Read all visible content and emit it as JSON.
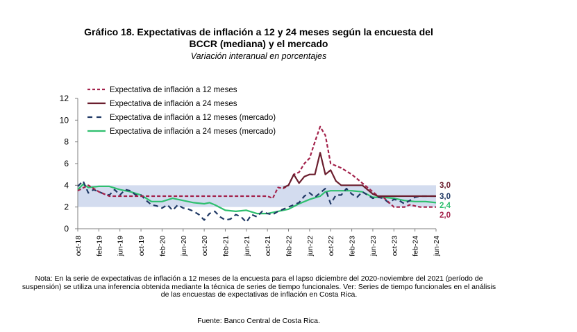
{
  "title_line1": "Gráfico 18. Expectativas de inflación a 12 y 24 meses según la encuesta del",
  "title_line2": "BCCR (mediana) y el mercado",
  "subtitle": "Variación interanual en porcentajes",
  "note": "Nota: En la serie de expectativas de inflación a 12 meses de la encuesta para el lapso diciembre del 2020-noviembre del 2021 (período de suspensión) se utiliza una inferencia obtenida mediante la técnica de series de tiempo funcionales. Ver: Series de tiempo funcionales en el análisis de las encuestas de expectativas de inflación en Costa Rica.",
  "source": "Fuente: Banco Central de Costa Rica.",
  "colors": {
    "s12": "#A3224B",
    "s24": "#6B1E2E",
    "m12": "#1F3864",
    "m24": "#2EBF6E",
    "band": "#D3DCEF"
  },
  "chart_data": {
    "type": "line",
    "title": "Expectativas de inflación a 12 y 24 meses según la encuesta del BCCR (mediana) y el mercado",
    "ylabel": "Variación interanual en porcentajes",
    "ylim": [
      0,
      12
    ],
    "yticks": [
      0,
      2,
      4,
      6,
      8,
      10,
      12
    ],
    "x_start": "oct-18",
    "x_end": "jun-24",
    "xticks": [
      {
        "label": "oct-18",
        "i": 0
      },
      {
        "label": "feb-19",
        "i": 4
      },
      {
        "label": "jun-19",
        "i": 8
      },
      {
        "label": "oct-19",
        "i": 12
      },
      {
        "label": "feb-20",
        "i": 16
      },
      {
        "label": "jun-20",
        "i": 20
      },
      {
        "label": "oct-20",
        "i": 24
      },
      {
        "label": "feb-21",
        "i": 28
      },
      {
        "label": "jun-21",
        "i": 32
      },
      {
        "label": "oct-21",
        "i": 36
      },
      {
        "label": "feb-22",
        "i": 40
      },
      {
        "label": "jun-22",
        "i": 44
      },
      {
        "label": "oct-22",
        "i": 48
      },
      {
        "label": "feb-23",
        "i": 52
      },
      {
        "label": "jun-23",
        "i": 56
      },
      {
        "label": "oct-23",
        "i": 60
      },
      {
        "label": "feb-24",
        "i": 64
      },
      {
        "label": "jun-24",
        "i": 68
      }
    ],
    "target_band": [
      2,
      4
    ],
    "series": [
      {
        "key": "s12",
        "name": "Expectativa de inflación a 12 meses",
        "style": "dashed",
        "points": [
          [
            0,
            3.5
          ],
          [
            2,
            4
          ],
          [
            4,
            3.4
          ],
          [
            6,
            3
          ],
          [
            9,
            3
          ],
          [
            12,
            3
          ],
          [
            15,
            3
          ],
          [
            18,
            3
          ],
          [
            21,
            3
          ],
          [
            23,
            3
          ],
          [
            24,
            3
          ],
          [
            26,
            3
          ],
          [
            28,
            3
          ],
          [
            30,
            3
          ],
          [
            32,
            3
          ],
          [
            34,
            3
          ],
          [
            36,
            3
          ],
          [
            37,
            2.8
          ],
          [
            38,
            3.8
          ],
          [
            39,
            3.7
          ],
          [
            40,
            4
          ],
          [
            41,
            5
          ],
          [
            42,
            5.2
          ],
          [
            43,
            6
          ],
          [
            44,
            6.5
          ],
          [
            45,
            8
          ],
          [
            46,
            9.4
          ],
          [
            47,
            8.6
          ],
          [
            48,
            6
          ],
          [
            50,
            5.6
          ],
          [
            52,
            5
          ],
          [
            53,
            4.6
          ],
          [
            55,
            3.8
          ],
          [
            56,
            3.4
          ],
          [
            57,
            3
          ],
          [
            58,
            2.9
          ],
          [
            60,
            2
          ],
          [
            62,
            2
          ],
          [
            63,
            2.2
          ],
          [
            65,
            2
          ],
          [
            68,
            2
          ]
        ],
        "final_label": "2,0"
      },
      {
        "key": "s24",
        "name": "Expectativa de inflación a 24 meses",
        "style": "solid",
        "points": [
          [
            39,
            3.8
          ],
          [
            40,
            4
          ],
          [
            41,
            5
          ],
          [
            42,
            4.2
          ],
          [
            43,
            4.8
          ],
          [
            44,
            5
          ],
          [
            45,
            5
          ],
          [
            46,
            7
          ],
          [
            47,
            5
          ],
          [
            48,
            5.4
          ],
          [
            49,
            4.4
          ],
          [
            50,
            4
          ],
          [
            52,
            4
          ],
          [
            54,
            4
          ],
          [
            55,
            3.6
          ],
          [
            56,
            3.2
          ],
          [
            57,
            3
          ],
          [
            60,
            3
          ],
          [
            65,
            3
          ],
          [
            68,
            3
          ]
        ],
        "final_label": "3,0"
      },
      {
        "key": "m12",
        "name": "Expectativa de inflación a 12 meses (mercado)",
        "style": "dashed",
        "points": [
          [
            0,
            3.9
          ],
          [
            1,
            4.4
          ],
          [
            2,
            3.3
          ],
          [
            3,
            3.6
          ],
          [
            4,
            3.4
          ],
          [
            5,
            3.2
          ],
          [
            6,
            3.1
          ],
          [
            7,
            3.6
          ],
          [
            8,
            3.1
          ],
          [
            9,
            3.6
          ],
          [
            10,
            3.5
          ],
          [
            11,
            3.1
          ],
          [
            12,
            3.1
          ],
          [
            13,
            2.6
          ],
          [
            14,
            2.2
          ],
          [
            15,
            2.1
          ],
          [
            16,
            1.9
          ],
          [
            17,
            2.2
          ],
          [
            18,
            1.7
          ],
          [
            19,
            2.2
          ],
          [
            20,
            1.9
          ],
          [
            21,
            1.8
          ],
          [
            22,
            1.6
          ],
          [
            23,
            1.3
          ],
          [
            24,
            0.8
          ],
          [
            25,
            1.4
          ],
          [
            26,
            1.6
          ],
          [
            27,
            1.1
          ],
          [
            28,
            0.8
          ],
          [
            29,
            0.9
          ],
          [
            30,
            1.3
          ],
          [
            31,
            1.1
          ],
          [
            32,
            0.6
          ],
          [
            33,
            1.3
          ],
          [
            34,
            1.1
          ],
          [
            35,
            1.6
          ],
          [
            36,
            1.4
          ],
          [
            37,
            1.3
          ],
          [
            38,
            1.6
          ],
          [
            39,
            1.8
          ],
          [
            40,
            2
          ],
          [
            41,
            2.2
          ],
          [
            42,
            2.4
          ],
          [
            43,
            3
          ],
          [
            44,
            3.3
          ],
          [
            45,
            2.9
          ],
          [
            46,
            3.3
          ],
          [
            47,
            3.7
          ],
          [
            48,
            2.3
          ],
          [
            49,
            3.1
          ],
          [
            50,
            3.1
          ],
          [
            51,
            3.7
          ],
          [
            52,
            3.2
          ],
          [
            53,
            2.9
          ],
          [
            54,
            3.4
          ],
          [
            55,
            3.1
          ],
          [
            56,
            2.8
          ],
          [
            57,
            2.9
          ],
          [
            58,
            2.8
          ],
          [
            59,
            2.4
          ],
          [
            60,
            2.7
          ],
          [
            61,
            2.6
          ],
          [
            62,
            2.3
          ],
          [
            63,
            2.6
          ],
          [
            64,
            2.9
          ],
          [
            65,
            3
          ],
          [
            66,
            3
          ],
          [
            67,
            3
          ],
          [
            68,
            3
          ]
        ],
        "final_label": "3,0"
      },
      {
        "key": "m24",
        "name": "Expectativa de inflación a 24 meses (mercado)",
        "style": "solid",
        "points": [
          [
            0,
            3.6
          ],
          [
            1,
            4.1
          ],
          [
            2,
            3.8
          ],
          [
            4,
            3.9
          ],
          [
            6,
            3.9
          ],
          [
            8,
            3.6
          ],
          [
            10,
            3.4
          ],
          [
            12,
            3.1
          ],
          [
            14,
            2.5
          ],
          [
            16,
            2.5
          ],
          [
            18,
            2.8
          ],
          [
            20,
            2.6
          ],
          [
            22,
            2.4
          ],
          [
            24,
            2.3
          ],
          [
            25,
            2.4
          ],
          [
            26,
            2.2
          ],
          [
            28,
            1.7
          ],
          [
            30,
            1.6
          ],
          [
            32,
            1.7
          ],
          [
            34,
            1.4
          ],
          [
            36,
            1.4
          ],
          [
            38,
            1.6
          ],
          [
            40,
            1.8
          ],
          [
            42,
            2.3
          ],
          [
            44,
            2.7
          ],
          [
            46,
            3
          ],
          [
            47,
            3.4
          ],
          [
            48,
            3.5
          ],
          [
            52,
            3.5
          ],
          [
            54,
            3.4
          ],
          [
            56,
            2.9
          ],
          [
            58,
            2.9
          ],
          [
            60,
            2.8
          ],
          [
            62,
            2.6
          ],
          [
            64,
            2.5
          ],
          [
            66,
            2.5
          ],
          [
            68,
            2.4
          ]
        ],
        "final_label": "2,4"
      }
    ]
  }
}
